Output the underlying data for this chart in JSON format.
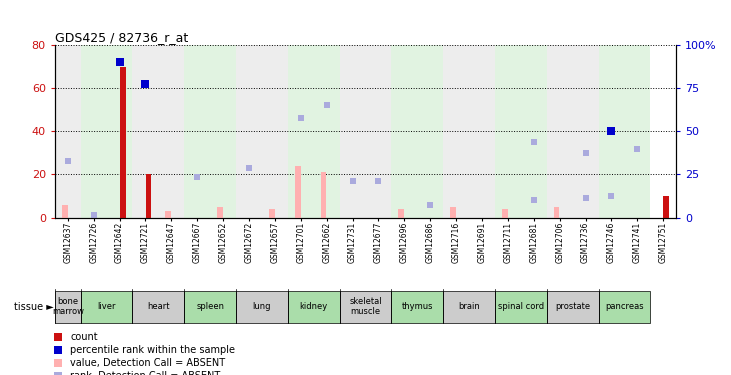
{
  "title": "GDS425 / 82736_r_at",
  "samples": [
    "GSM12637",
    "GSM12726",
    "GSM12642",
    "GSM12721",
    "GSM12647",
    "GSM12667",
    "GSM12652",
    "GSM12672",
    "GSM12657",
    "GSM12701",
    "GSM12662",
    "GSM12731",
    "GSM12677",
    "GSM12696",
    "GSM12686",
    "GSM12716",
    "GSM12691",
    "GSM12711",
    "GSM12681",
    "GSM12706",
    "GSM12736",
    "GSM12746",
    "GSM12741",
    "GSM12751"
  ],
  "tissues": [
    {
      "label": "bone\nmarrow",
      "start": 0,
      "end": 0,
      "green": false
    },
    {
      "label": "liver",
      "start": 1,
      "end": 2,
      "green": true
    },
    {
      "label": "heart",
      "start": 3,
      "end": 4,
      "green": false
    },
    {
      "label": "spleen",
      "start": 5,
      "end": 6,
      "green": true
    },
    {
      "label": "lung",
      "start": 7,
      "end": 8,
      "green": false
    },
    {
      "label": "kidney",
      "start": 9,
      "end": 10,
      "green": true
    },
    {
      "label": "skeletal\nmuscle",
      "start": 11,
      "end": 12,
      "green": false
    },
    {
      "label": "thymus",
      "start": 13,
      "end": 14,
      "green": true
    },
    {
      "label": "brain",
      "start": 15,
      "end": 16,
      "green": false
    },
    {
      "label": "spinal cord",
      "start": 17,
      "end": 18,
      "green": true
    },
    {
      "label": "prostate",
      "start": 19,
      "end": 20,
      "green": false
    },
    {
      "label": "pancreas",
      "start": 21,
      "end": 22,
      "green": true
    }
  ],
  "count_values": [
    0,
    0,
    70,
    20,
    0,
    0,
    0,
    0,
    0,
    0,
    0,
    0,
    0,
    0,
    0,
    0,
    0,
    0,
    0,
    0,
    0,
    0,
    0,
    10
  ],
  "count_is_present": [
    false,
    false,
    true,
    true,
    false,
    false,
    false,
    false,
    false,
    false,
    false,
    false,
    false,
    false,
    false,
    false,
    false,
    false,
    false,
    false,
    false,
    false,
    false,
    true
  ],
  "value_absent": [
    6,
    0,
    0,
    0,
    3,
    0,
    5,
    0,
    4,
    24,
    21,
    0,
    0,
    4,
    0,
    5,
    0,
    4,
    0,
    5,
    0,
    0,
    0,
    0
  ],
  "rank_absent": [
    26,
    1,
    0,
    0,
    0,
    19,
    0,
    23,
    0,
    0,
    0,
    17,
    17,
    0,
    6,
    0,
    0,
    0,
    8,
    0,
    9,
    10,
    0,
    0
  ],
  "percentile_present": [
    0,
    0,
    72,
    62,
    0,
    0,
    0,
    0,
    0,
    0,
    0,
    0,
    0,
    0,
    0,
    0,
    0,
    0,
    0,
    0,
    0,
    40,
    0,
    0
  ],
  "percentile_absent": [
    0,
    0,
    0,
    0,
    0,
    0,
    0,
    0,
    0,
    46,
    52,
    17,
    0,
    0,
    0,
    0,
    0,
    0,
    35,
    0,
    30,
    0,
    32,
    0
  ],
  "ylim_left": [
    0,
    80
  ],
  "ylim_right": [
    0,
    100
  ],
  "yticks_left": [
    0,
    20,
    40,
    60,
    80
  ],
  "yticks_right": [
    0,
    25,
    50,
    75,
    100
  ],
  "color_count": "#cc1111",
  "color_count_absent": "#ffb0b0",
  "color_percentile_present": "#0000cc",
  "color_percentile_absent": "#aaaadd",
  "color_rank_absent": "#aaaadd",
  "bg_green": "#aaddaa",
  "bg_grey": "#cccccc",
  "bg_white": "#ffffff"
}
